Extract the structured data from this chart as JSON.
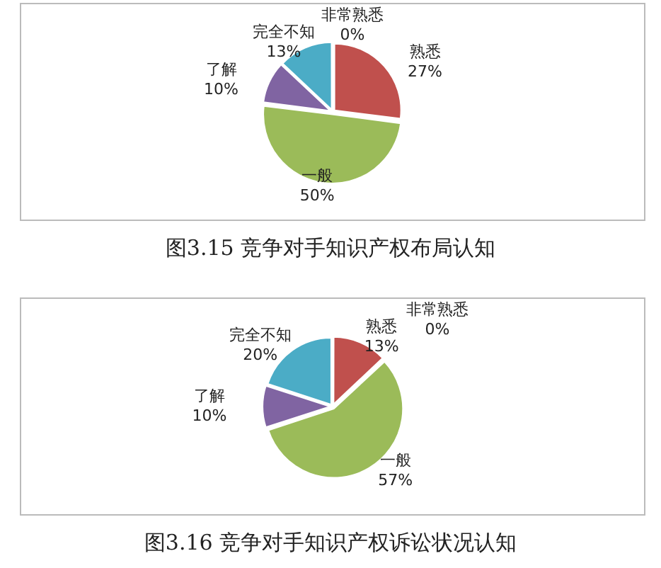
{
  "chart_data": [
    {
      "type": "pie",
      "title": "图3.15 竞争对手知识产权布局认知",
      "categories": [
        "非常熟悉",
        "熟悉",
        "一般",
        "了解",
        "完全不知"
      ],
      "values": [
        0,
        27,
        50,
        10,
        13
      ],
      "colors": [
        "#4f81bd",
        "#c0504d",
        "#9bbb59",
        "#8064a2",
        "#4bacc6"
      ],
      "value_labels": [
        "0%",
        "27%",
        "50%",
        "10%",
        "13%"
      ],
      "legend": false
    },
    {
      "type": "pie",
      "title": "图3.16 竞争对手知识产权诉讼状况认知",
      "categories": [
        "非常熟悉",
        "熟悉",
        "一般",
        "了解",
        "完全不知"
      ],
      "values": [
        0,
        13,
        57,
        10,
        20
      ],
      "colors": [
        "#4f81bd",
        "#c0504d",
        "#9bbb59",
        "#8064a2",
        "#4bacc6"
      ],
      "value_labels": [
        "0%",
        "13%",
        "57%",
        "10%",
        "20%"
      ],
      "legend": false
    }
  ]
}
